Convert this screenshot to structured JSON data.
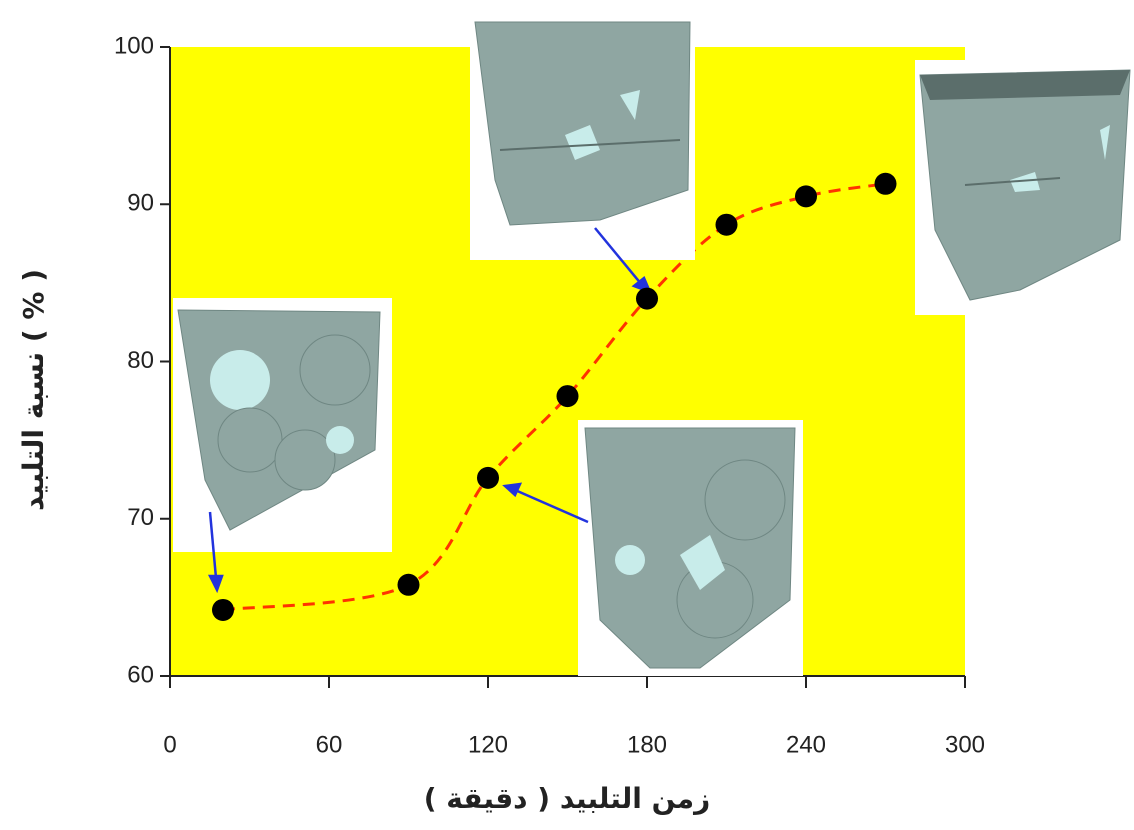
{
  "chart_data": {
    "type": "scatter",
    "x_label": "زمن التلبيد ( دقيقة )",
    "y_label": "نسبة التلبيد ( % )",
    "x": [
      20,
      90,
      120,
      150,
      180,
      210,
      240,
      270
    ],
    "values": [
      64.2,
      65.8,
      72.6,
      77.8,
      84,
      88.7,
      90.5,
      91.3
    ],
    "color": "#000000",
    "line_color": "#ff3300",
    "plot_background": "#ffff00",
    "xlim": [
      0,
      300
    ],
    "xticks": [
      0,
      60,
      120,
      180,
      240,
      300
    ],
    "ylim": [
      60,
      100
    ],
    "yticks": [
      60,
      70,
      80,
      90,
      100
    ]
  }
}
